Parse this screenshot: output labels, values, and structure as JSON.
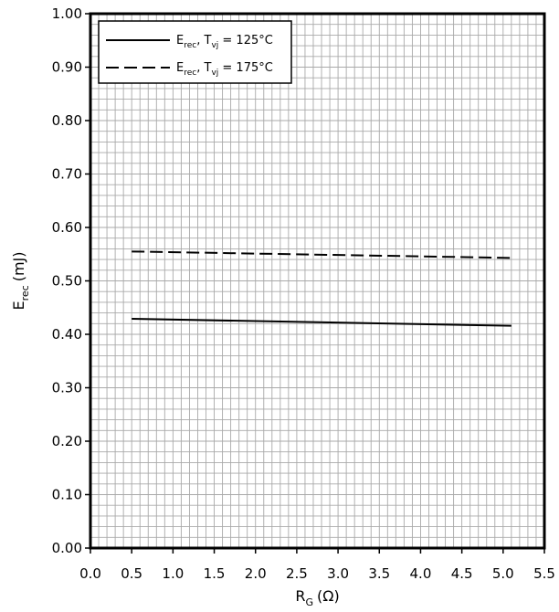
{
  "chart_data": {
    "type": "line",
    "title": "",
    "xlabel": {
      "main": "R",
      "sub": "G",
      "unit": "(Ω)"
    },
    "ylabel": {
      "main": "E",
      "sub": "rec",
      "unit": "(mJ)"
    },
    "xlim": [
      0.0,
      5.5
    ],
    "ylim": [
      0.0,
      1.0
    ],
    "x_ticks": [
      "0.0",
      "0.5",
      "1.0",
      "1.5",
      "2.0",
      "2.5",
      "3.0",
      "3.5",
      "4.0",
      "4.5",
      "5.0",
      "5.5"
    ],
    "y_ticks": [
      "0.00",
      "0.10",
      "0.20",
      "0.30",
      "0.40",
      "0.50",
      "0.60",
      "0.70",
      "0.80",
      "0.90",
      "1.00"
    ],
    "grid": true,
    "legend_position": "top-left",
    "series": [
      {
        "name": "E_rec, T_vj = 125°C",
        "legend": {
          "main": "E",
          "sub1": "rec",
          "mid": ", T",
          "sub2": "vj",
          "tail": " = 125°C"
        },
        "style": "solid",
        "color": "#000000",
        "x": [
          0.5,
          5.1
        ],
        "y": [
          0.429,
          0.416
        ]
      },
      {
        "name": "E_rec, T_vj = 175°C",
        "legend": {
          "main": "E",
          "sub1": "rec",
          "mid": ", T",
          "sub2": "vj",
          "tail": " = 175°C"
        },
        "style": "dashed",
        "color": "#000000",
        "x": [
          0.5,
          5.1
        ],
        "y": [
          0.555,
          0.543
        ]
      }
    ]
  }
}
